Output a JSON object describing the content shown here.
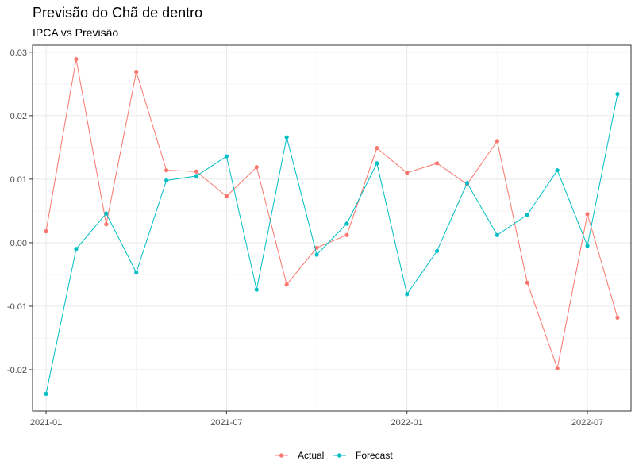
{
  "chart_data": {
    "type": "line",
    "title": "Previsão do Chã de dentro",
    "subtitle": "IPCA vs Previsão",
    "xlabel": "",
    "ylabel": "",
    "x": [
      "2021-01",
      "2021-02",
      "2021-03",
      "2021-04",
      "2021-05",
      "2021-06",
      "2021-07",
      "2021-08",
      "2021-09",
      "2021-10",
      "2021-11",
      "2021-12",
      "2022-01",
      "2022-02",
      "2022-03",
      "2022-04",
      "2022-05",
      "2022-06",
      "2022-07",
      "2022-08"
    ],
    "x_ticks": [
      "2021-01",
      "2021-07",
      "2022-01",
      "2022-07"
    ],
    "y_ticks": [
      -0.02,
      -0.01,
      0.0,
      0.01,
      0.02,
      0.03
    ],
    "y_tick_labels": [
      "-0.02",
      "-0.01",
      "0.00",
      "0.01",
      "0.02",
      "0.03"
    ],
    "ylim": [
      -0.0265,
      0.0311
    ],
    "series": [
      {
        "name": "Actual",
        "color": "#F8766D",
        "values": [
          0.0018,
          0.0289,
          0.0029,
          0.0269,
          0.0114,
          0.0112,
          0.0073,
          0.0119,
          -0.0066,
          -0.0008,
          0.0012,
          0.0149,
          0.011,
          0.0125,
          0.0092,
          0.016,
          -0.0063,
          -0.0198,
          0.0045,
          -0.0118
        ]
      },
      {
        "name": "Forecast",
        "color": "#00BFC4",
        "values": [
          -0.0238,
          -0.001,
          0.0046,
          -0.0047,
          0.0098,
          0.0105,
          0.0136,
          -0.0074,
          0.0166,
          -0.0019,
          0.003,
          0.0125,
          -0.0081,
          -0.0013,
          0.0094,
          0.0012,
          0.0044,
          0.0114,
          -0.0005,
          0.0234
        ]
      }
    ],
    "grid": true,
    "legend_position": "bottom"
  }
}
